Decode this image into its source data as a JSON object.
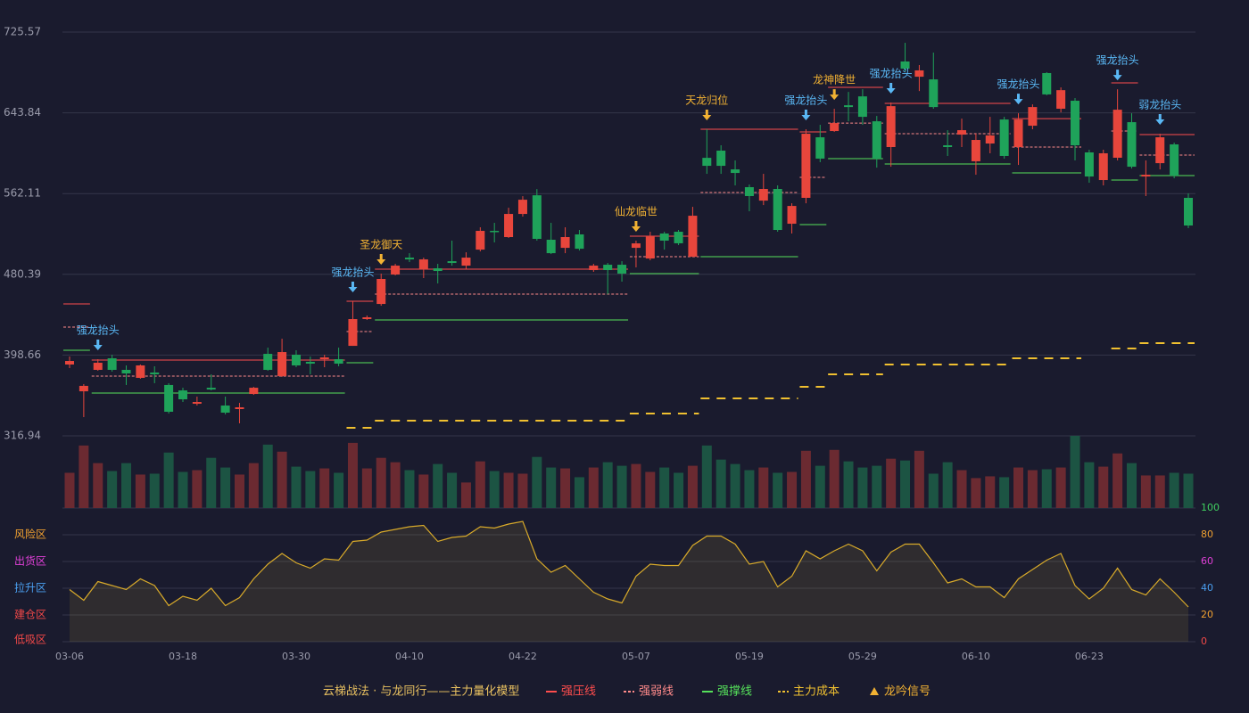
{
  "chart_data": {
    "type": "candlestick",
    "categories": [
      "03-06",
      null,
      null,
      null,
      null,
      null,
      null,
      null,
      "03-18",
      null,
      null,
      null,
      null,
      null,
      null,
      null,
      "03-30",
      null,
      null,
      null,
      null,
      null,
      null,
      null,
      "04-10",
      null,
      null,
      null,
      null,
      null,
      null,
      null,
      "04-22",
      null,
      null,
      null,
      null,
      null,
      null,
      null,
      "05-07",
      null,
      null,
      null,
      null,
      null,
      null,
      null,
      "05-19",
      null,
      null,
      null,
      null,
      null,
      null,
      null,
      "05-29",
      null,
      null,
      null,
      null,
      null,
      null,
      null,
      "06-10",
      null,
      null,
      null,
      null,
      null,
      null,
      null,
      "06-23",
      null,
      null,
      null,
      null,
      null,
      null,
      null
    ],
    "open": [
      389.1,
      362.0,
      383.7,
      395.4,
      383.7,
      375.6,
      381.0,
      368.4,
      362.9,
      349.4,
      365.6,
      347.6,
      344.0,
      359.3,
      399.9,
      377.4,
      399.0,
      391.8,
      394.5,
      394.5,
      408.0,
      435.1,
      450.4,
      480.2,
      497.3,
      485.6,
      486.5,
      493.7,
      489.2,
      505.4,
      524.4,
      518.1,
      541.5,
      560.4,
      515.4,
      507.2,
      520.8,
      484.7,
      490.1,
      490.1,
      507.2,
      496.4,
      521.7,
      523.5,
      498.2,
      598.3,
      605.6,
      586.6,
      568.6,
      555.0,
      566.8,
      531.6,
      557.8,
      619.1,
      625.4,
      651.5,
      660.5,
      635.3,
      609.2,
      695.8,
      680.4,
      677.7,
      611.0,
      621.8,
      594.8,
      612.8,
      637.1,
      609.2,
      630.8,
      684.1,
      648.0,
      656.1,
      603.8,
      575.8,
      598.4,
      634.4,
      579.4,
      592.9,
      611.9,
      557.8
    ],
    "high": [
      397.2,
      369.3,
      394.5,
      399.0,
      388.2,
      389.1,
      387.3,
      370.2,
      365.6,
      356.6,
      379.2,
      356.6,
      350.3,
      366.5,
      406.2,
      415.2,
      403.5,
      397.2,
      399.0,
      406.2,
      453.1,
      438.7,
      481.1,
      491.0,
      501.8,
      497.3,
      491.0,
      514.5,
      502.7,
      528.0,
      532.5,
      547.8,
      559.5,
      566.7,
      532.5,
      528.0,
      525.3,
      491.0,
      491.9,
      493.7,
      514.5,
      523.5,
      523.5,
      525.3,
      548.7,
      627.2,
      611.0,
      595.7,
      571.3,
      582.1,
      570.4,
      552.3,
      627.2,
      631.7,
      647.9,
      665.0,
      667.7,
      640.7,
      654.3,
      714.7,
      692.2,
      704.8,
      626.3,
      638.0,
      622.7,
      639.8,
      639.8,
      643.4,
      652.4,
      685.0,
      669.6,
      658.8,
      606.5,
      606.5,
      667.7,
      643.4,
      595.7,
      622.7,
      613.7,
      562.3
    ],
    "low": [
      385.5,
      335.9,
      382.8,
      381.9,
      368.4,
      374.7,
      370.2,
      339.5,
      351.2,
      347.6,
      362.9,
      338.6,
      329.6,
      358.4,
      382.8,
      376.5,
      386.4,
      379.2,
      386.4,
      387.3,
      408.0,
      434.2,
      448.6,
      479.3,
      492.8,
      476.6,
      471.2,
      489.2,
      485.6,
      503.6,
      512.7,
      517.2,
      538.8,
      514.5,
      500.9,
      501.8,
      504.5,
      482.9,
      460.1,
      473.0,
      487.4,
      494.6,
      505.4,
      510.0,
      498.2,
      582.1,
      582.1,
      570.4,
      544.2,
      550.5,
      523.5,
      521.7,
      552.3,
      593.9,
      624.6,
      635.3,
      631.7,
      588.4,
      589.3,
      685.9,
      665.9,
      648.0,
      600.2,
      609.2,
      581.2,
      602.9,
      597.5,
      591.1,
      627.2,
      661.6,
      644.3,
      595.7,
      573.1,
      570.4,
      595.7,
      587.5,
      559.6,
      586.6,
      577.6,
      527.1
    ],
    "close": [
      392.7,
      367.5,
      390.9,
      383.7,
      380.1,
      388.2,
      379.2,
      341.3,
      353.9,
      351.2,
      363.8,
      340.4,
      345.8,
      365.6,
      383.7,
      401.7,
      388.2,
      390.0,
      396.3,
      390.0,
      435.1,
      436.9,
      475.7,
      489.2,
      495.5,
      495.5,
      483.8,
      491.9,
      497.3,
      524.4,
      523.5,
      541.5,
      555.9,
      516.3,
      501.8,
      518.1,
      506.3,
      489.2,
      484.7,
      481.1,
      511.7,
      519.0,
      514.5,
      511.8,
      539.7,
      590.2,
      590.2,
      583.0,
      559.6,
      566.8,
      525.3,
      549.6,
      622.7,
      597.5,
      633.5,
      649.7,
      639.8,
      597.5,
      650.6,
      688.6,
      686.8,
      649.7,
      609.2,
      626.3,
      616.4,
      621.0,
      600.2,
      637.1,
      649.7,
      662.5,
      666.8,
      611.0,
      579.4,
      602.9,
      647.0,
      589.3,
      581.2,
      619.1,
      580.3,
      529.8
    ],
    "up_color": "#e8463c",
    "down_color": "#1fa35a",
    "ylim": [
      316.94,
      725.57
    ],
    "yticks": [
      316.94,
      398.66,
      480.39,
      562.11,
      643.84,
      725.57
    ],
    "grid": true,
    "volume": {
      "values": [
        40,
        71,
        51,
        42,
        51,
        38,
        39,
        63,
        41,
        43,
        57,
        46,
        38,
        51,
        72,
        64,
        47,
        42,
        45,
        40,
        74,
        45,
        57,
        52,
        43,
        38,
        50,
        40,
        29,
        53,
        42,
        40,
        39,
        58,
        46,
        45,
        35,
        46,
        52,
        48,
        50,
        41,
        46,
        40,
        48,
        71,
        55,
        50,
        43,
        46,
        40,
        41,
        65,
        48,
        66,
        53,
        46,
        48,
        56,
        54,
        65,
        39,
        52,
        43,
        34,
        36,
        35,
        46,
        43,
        44,
        46,
        82,
        52,
        47,
        62,
        51,
        37,
        37,
        40,
        39
      ],
      "up_color": "#6b2a31",
      "down_color": "#1c5443"
    },
    "levels": [
      {
        "start": 0,
        "end": 1,
        "resist": 450.4,
        "weak": 427.0,
        "support": 403.5,
        "cost": null
      },
      {
        "start": 2,
        "end": 19,
        "resist": 393.6,
        "weak": 377.4,
        "support": 360.2,
        "cost": null
      },
      {
        "start": 20,
        "end": 21,
        "resist": 453.1,
        "weak": 422.5,
        "support": 390.9,
        "cost": 325.1
      },
      {
        "start": 22,
        "end": 39,
        "resist": 485.6,
        "weak": 460.4,
        "support": 434.2,
        "cost": 332.3
      },
      {
        "start": 40,
        "end": 44,
        "resist": 519.0,
        "weak": 498.2,
        "support": 481.1,
        "cost": 339.5
      },
      {
        "start": 45,
        "end": 51,
        "resist": 627.2,
        "weak": 563.2,
        "support": 498.2,
        "cost": 354.8
      },
      {
        "start": 52,
        "end": 53,
        "resist": 624.5,
        "weak": 578.5,
        "support": 530.7,
        "cost": 366.5
      },
      {
        "start": 54,
        "end": 57,
        "resist": 669.6,
        "weak": 633.5,
        "support": 597.5,
        "cost": 379.2
      },
      {
        "start": 58,
        "end": 66,
        "resist": 653.4,
        "weak": 622.7,
        "support": 592.1,
        "cost": 389.1
      },
      {
        "start": 67,
        "end": 71,
        "resist": 638.0,
        "weak": 609.2,
        "support": 583.0,
        "cost": 395.4
      },
      {
        "start": 74,
        "end": 75,
        "resist": 674.1,
        "weak": 625.4,
        "support": 575.8,
        "cost": 405.3
      },
      {
        "start": 76,
        "end": 79,
        "resist": 621.8,
        "weak": 601.1,
        "support": 580.3,
        "cost": 410.7
      }
    ],
    "signals": [
      {
        "index": 2,
        "label": "强龙抬头",
        "color": "#5ab8f5"
      },
      {
        "index": 20,
        "label": "强龙抬头",
        "color": "#5ab8f5"
      },
      {
        "index": 22,
        "label": "圣龙御天",
        "color": "#f2b233"
      },
      {
        "index": 40,
        "label": "仙龙临世",
        "color": "#f2b233"
      },
      {
        "index": 45,
        "label": "天龙归位",
        "color": "#f2b233"
      },
      {
        "index": 52,
        "label": "强龙抬头",
        "color": "#5ab8f5"
      },
      {
        "index": 54,
        "label": "龙神降世",
        "color": "#f2b233"
      },
      {
        "index": 58,
        "label": "强龙抬头",
        "color": "#5ab8f5"
      },
      {
        "index": 67,
        "label": "强龙抬头",
        "color": "#5ab8f5"
      },
      {
        "index": 74,
        "label": "强龙抬头",
        "color": "#5ab8f5"
      },
      {
        "index": 77,
        "label": "弱龙抬头",
        "color": "#5ab8f5"
      }
    ],
    "indicator": {
      "values": [
        39,
        31,
        45,
        42,
        39,
        47,
        42,
        27,
        34,
        31,
        40,
        27,
        33,
        47,
        58,
        66,
        59,
        55,
        62,
        61,
        75,
        76,
        82,
        84,
        86,
        87,
        75,
        78,
        79,
        86,
        85,
        88,
        90,
        62,
        52,
        57,
        47,
        37,
        32,
        29,
        49,
        58,
        57,
        57,
        72,
        79,
        79,
        73,
        58,
        60,
        41,
        49,
        68,
        62,
        68,
        73,
        68,
        53,
        67,
        73,
        73,
        59,
        44,
        47,
        41,
        41,
        33,
        47,
        54,
        61,
        66,
        42,
        32,
        40,
        55,
        39,
        35,
        47,
        37,
        26
      ],
      "color": "#d8aa2a",
      "ylim": [
        0,
        100
      ],
      "yticks": [
        0,
        20,
        40,
        60,
        80,
        100
      ],
      "tick_colors": [
        "#f04848",
        "#f0a030",
        "#4a9ff0",
        "#e040d8",
        "#f0a030",
        "#40d060"
      ],
      "zones": [
        {
          "label": "风险区",
          "value": 80,
          "color": "#f0a030"
        },
        {
          "label": "出货区",
          "value": 60,
          "color": "#e040d8"
        },
        {
          "label": "拉升区",
          "value": 40,
          "color": "#4a9ff0"
        },
        {
          "label": "建仓区",
          "value": 20,
          "color": "#f04848"
        },
        {
          "label": "低吸区",
          "value": 0,
          "color": "#f04848"
        }
      ]
    },
    "legend": {
      "title": "云梯战法 · 与龙同行——主力量化模型",
      "title_color": "#e8c060",
      "items": [
        {
          "name": "强压线",
          "color": "#ff4d4d",
          "style": "solid"
        },
        {
          "name": "强弱线",
          "color": "#ff8a8a",
          "style": "dashed"
        },
        {
          "name": "强撑线",
          "color": "#55e05a",
          "style": "solid"
        },
        {
          "name": "主力成本",
          "color": "#f0c030",
          "style": "dashed"
        },
        {
          "name": "龙吟信号",
          "color": "#f2b233",
          "style": "marker"
        }
      ]
    }
  }
}
